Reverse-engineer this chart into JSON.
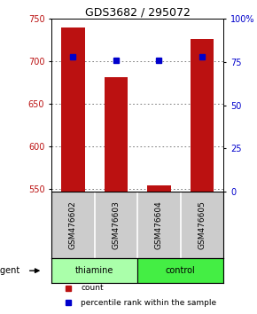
{
  "title": "GDS3682 / 295072",
  "samples": [
    "GSM476602",
    "GSM476603",
    "GSM476604",
    "GSM476605"
  ],
  "counts": [
    740,
    682,
    554,
    726
  ],
  "percentiles": [
    78,
    76,
    76,
    78
  ],
  "ylim_left": [
    547,
    750
  ],
  "ylim_right": [
    0,
    100
  ],
  "yticks_left": [
    550,
    600,
    650,
    700,
    750
  ],
  "yticks_right": [
    0,
    25,
    50,
    75,
    100
  ],
  "bar_color": "#bb1111",
  "marker_color": "#0000cc",
  "bar_width": 0.55,
  "groups": [
    {
      "label": "thiamine",
      "samples": [
        0,
        1
      ],
      "color": "#aaffaa"
    },
    {
      "label": "control",
      "samples": [
        2,
        3
      ],
      "color": "#44ee44"
    }
  ],
  "group_label": "agent",
  "legend_items": [
    {
      "label": "count",
      "color": "#bb1111"
    },
    {
      "label": "percentile rank within the sample",
      "color": "#0000cc"
    }
  ],
  "background_color": "#ffffff",
  "plot_bg": "#ffffff",
  "grid_color": "#666666",
  "sample_bg": "#cccccc",
  "title_fontsize": 9,
  "tick_fontsize": 7,
  "label_fontsize": 7,
  "legend_fontsize": 6.5
}
